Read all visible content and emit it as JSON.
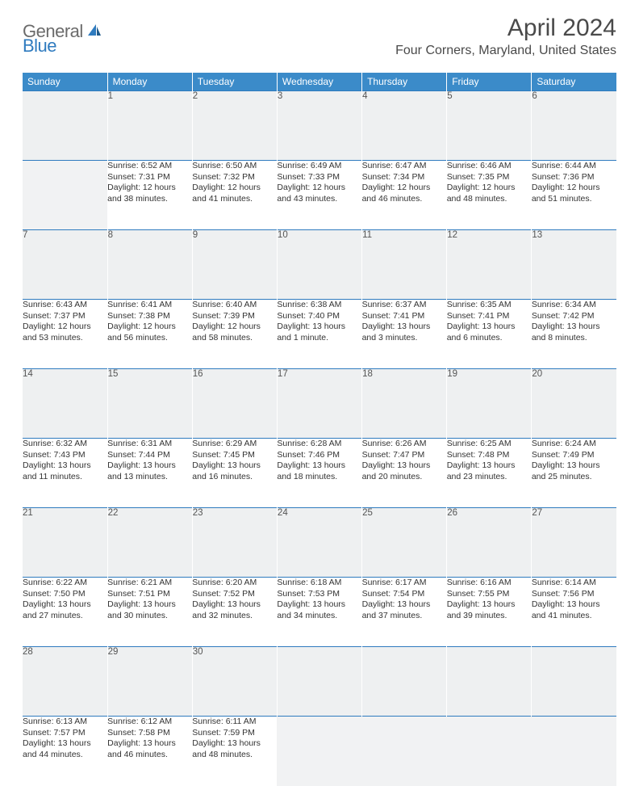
{
  "brand": {
    "part1": "General",
    "part2": "Blue",
    "color_gray": "#6b6b6b",
    "color_blue": "#2f7bbf"
  },
  "title": {
    "month_year": "April 2024",
    "location": "Four Corners, Maryland, United States"
  },
  "weekdays": [
    "Sunday",
    "Monday",
    "Tuesday",
    "Wednesday",
    "Thursday",
    "Friday",
    "Saturday"
  ],
  "colors": {
    "header_bg": "#3b8bc9",
    "header_text": "#ffffff",
    "daynum_bg": "#eef0f1",
    "row_border": "#2f7bbf",
    "text": "#333333",
    "empty_bg": "#f1f2f3"
  },
  "weeks": [
    [
      null,
      {
        "n": "1",
        "sr": "6:52 AM",
        "ss": "7:31 PM",
        "dl1": "12 hours",
        "dl2": "and 38 minutes."
      },
      {
        "n": "2",
        "sr": "6:50 AM",
        "ss": "7:32 PM",
        "dl1": "12 hours",
        "dl2": "and 41 minutes."
      },
      {
        "n": "3",
        "sr": "6:49 AM",
        "ss": "7:33 PM",
        "dl1": "12 hours",
        "dl2": "and 43 minutes."
      },
      {
        "n": "4",
        "sr": "6:47 AM",
        "ss": "7:34 PM",
        "dl1": "12 hours",
        "dl2": "and 46 minutes."
      },
      {
        "n": "5",
        "sr": "6:46 AM",
        "ss": "7:35 PM",
        "dl1": "12 hours",
        "dl2": "and 48 minutes."
      },
      {
        "n": "6",
        "sr": "6:44 AM",
        "ss": "7:36 PM",
        "dl1": "12 hours",
        "dl2": "and 51 minutes."
      }
    ],
    [
      {
        "n": "7",
        "sr": "6:43 AM",
        "ss": "7:37 PM",
        "dl1": "12 hours",
        "dl2": "and 53 minutes."
      },
      {
        "n": "8",
        "sr": "6:41 AM",
        "ss": "7:38 PM",
        "dl1": "12 hours",
        "dl2": "and 56 minutes."
      },
      {
        "n": "9",
        "sr": "6:40 AM",
        "ss": "7:39 PM",
        "dl1": "12 hours",
        "dl2": "and 58 minutes."
      },
      {
        "n": "10",
        "sr": "6:38 AM",
        "ss": "7:40 PM",
        "dl1": "13 hours",
        "dl2": "and 1 minute."
      },
      {
        "n": "11",
        "sr": "6:37 AM",
        "ss": "7:41 PM",
        "dl1": "13 hours",
        "dl2": "and 3 minutes."
      },
      {
        "n": "12",
        "sr": "6:35 AM",
        "ss": "7:41 PM",
        "dl1": "13 hours",
        "dl2": "and 6 minutes."
      },
      {
        "n": "13",
        "sr": "6:34 AM",
        "ss": "7:42 PM",
        "dl1": "13 hours",
        "dl2": "and 8 minutes."
      }
    ],
    [
      {
        "n": "14",
        "sr": "6:32 AM",
        "ss": "7:43 PM",
        "dl1": "13 hours",
        "dl2": "and 11 minutes."
      },
      {
        "n": "15",
        "sr": "6:31 AM",
        "ss": "7:44 PM",
        "dl1": "13 hours",
        "dl2": "and 13 minutes."
      },
      {
        "n": "16",
        "sr": "6:29 AM",
        "ss": "7:45 PM",
        "dl1": "13 hours",
        "dl2": "and 16 minutes."
      },
      {
        "n": "17",
        "sr": "6:28 AM",
        "ss": "7:46 PM",
        "dl1": "13 hours",
        "dl2": "and 18 minutes."
      },
      {
        "n": "18",
        "sr": "6:26 AM",
        "ss": "7:47 PM",
        "dl1": "13 hours",
        "dl2": "and 20 minutes."
      },
      {
        "n": "19",
        "sr": "6:25 AM",
        "ss": "7:48 PM",
        "dl1": "13 hours",
        "dl2": "and 23 minutes."
      },
      {
        "n": "20",
        "sr": "6:24 AM",
        "ss": "7:49 PM",
        "dl1": "13 hours",
        "dl2": "and 25 minutes."
      }
    ],
    [
      {
        "n": "21",
        "sr": "6:22 AM",
        "ss": "7:50 PM",
        "dl1": "13 hours",
        "dl2": "and 27 minutes."
      },
      {
        "n": "22",
        "sr": "6:21 AM",
        "ss": "7:51 PM",
        "dl1": "13 hours",
        "dl2": "and 30 minutes."
      },
      {
        "n": "23",
        "sr": "6:20 AM",
        "ss": "7:52 PM",
        "dl1": "13 hours",
        "dl2": "and 32 minutes."
      },
      {
        "n": "24",
        "sr": "6:18 AM",
        "ss": "7:53 PM",
        "dl1": "13 hours",
        "dl2": "and 34 minutes."
      },
      {
        "n": "25",
        "sr": "6:17 AM",
        "ss": "7:54 PM",
        "dl1": "13 hours",
        "dl2": "and 37 minutes."
      },
      {
        "n": "26",
        "sr": "6:16 AM",
        "ss": "7:55 PM",
        "dl1": "13 hours",
        "dl2": "and 39 minutes."
      },
      {
        "n": "27",
        "sr": "6:14 AM",
        "ss": "7:56 PM",
        "dl1": "13 hours",
        "dl2": "and 41 minutes."
      }
    ],
    [
      {
        "n": "28",
        "sr": "6:13 AM",
        "ss": "7:57 PM",
        "dl1": "13 hours",
        "dl2": "and 44 minutes."
      },
      {
        "n": "29",
        "sr": "6:12 AM",
        "ss": "7:58 PM",
        "dl1": "13 hours",
        "dl2": "and 46 minutes."
      },
      {
        "n": "30",
        "sr": "6:11 AM",
        "ss": "7:59 PM",
        "dl1": "13 hours",
        "dl2": "and 48 minutes."
      },
      null,
      null,
      null,
      null
    ]
  ],
  "labels": {
    "sunrise": "Sunrise:",
    "sunset": "Sunset:",
    "daylight": "Daylight:"
  }
}
